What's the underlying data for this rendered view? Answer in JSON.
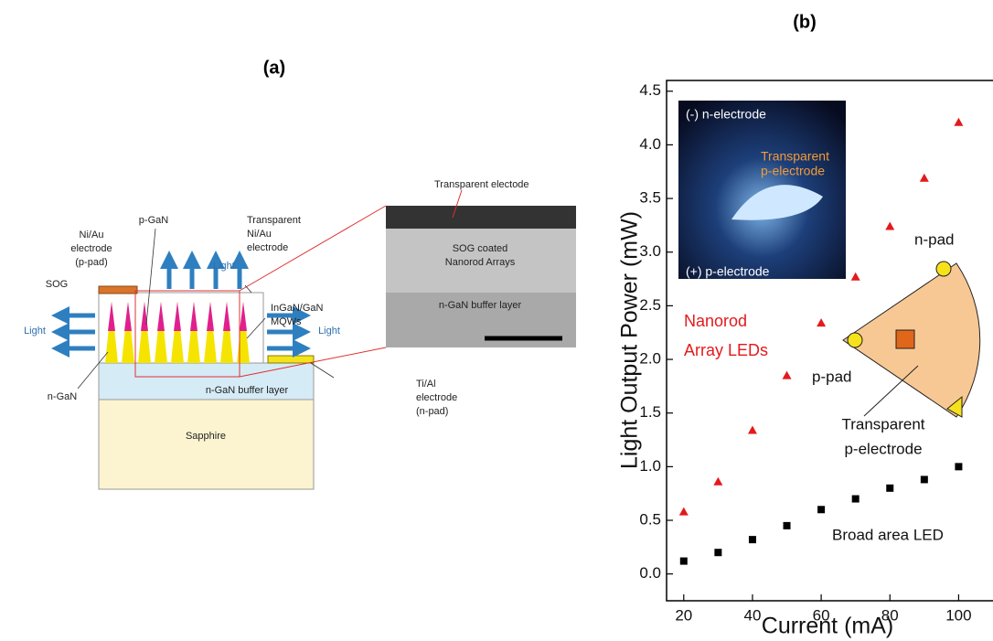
{
  "panel_a": {
    "label": "(a)",
    "ni_au": [
      "Ni/Au",
      "electrode",
      "(p-pad)"
    ],
    "p_gan": "p-GaN",
    "transparent": [
      "Transparent",
      "Ni/Au",
      "electrode"
    ],
    "sog": "SOG",
    "light": "Light",
    "mqw": [
      "InGaN/GaN",
      "MQWs"
    ],
    "n_gan": "n-GaN",
    "buffer": "n-GaN buffer layer",
    "ti_al": [
      "Ti/Al",
      "electrode",
      "(n-pad)"
    ],
    "sapphire": "Sapphire",
    "sem": {
      "top": "Transparent electode",
      "middle": [
        "SOG coated",
        "Nanorod Arrays"
      ],
      "bottom": "n-GaN buffer layer"
    }
  },
  "chart_data": {
    "type": "scatter",
    "panel_label": "(b)",
    "x_label": "Current (mA)",
    "y_label": "Light Output Power (mW)",
    "x": [
      20,
      30,
      40,
      50,
      60,
      70,
      80,
      90,
      100
    ],
    "series": [
      {
        "color": "#e31a1c",
        "marker": "triangle",
        "values": [
          0.58,
          0.86,
          1.34,
          1.85,
          2.34,
          2.77,
          3.24,
          3.69,
          4.21
        ]
      },
      {
        "color": "#000000",
        "marker": "square",
        "values": [
          0.12,
          0.2,
          0.32,
          0.45,
          0.6,
          0.7,
          0.8,
          0.88,
          1.0
        ]
      }
    ],
    "xlim": [
      15,
      110
    ],
    "ylim": [
      -0.25,
      4.6
    ],
    "xticks": [
      20,
      40,
      60,
      80,
      100
    ],
    "yticks": [
      {
        "value": 0,
        "label": "0.0"
      },
      {
        "value": 0.5,
        "label": "0.5"
      },
      {
        "value": 1,
        "label": "1.0"
      },
      {
        "value": 1.5,
        "label": "1.5"
      },
      {
        "value": 2,
        "label": "2.0"
      },
      {
        "value": 2.5,
        "label": "2.5"
      },
      {
        "value": 3,
        "label": "3.0"
      },
      {
        "value": 3.5,
        "label": "3.5"
      },
      {
        "value": 4,
        "label": "4.0"
      },
      {
        "value": 4.5,
        "label": "4.5"
      }
    ],
    "annotations": {
      "nanorod": [
        "Nanorod",
        "Array LEDs"
      ],
      "broad": "Broad area LED",
      "inset": {
        "n_pad": "n-pad",
        "p_pad": "p-pad",
        "transparent": [
          "Transparent",
          "p-electrode"
        ]
      },
      "photo": {
        "n_electrode": "(-) n-electrode",
        "transparent": [
          "Transparent",
          "p-electrode"
        ],
        "p_electrode": "(+) p-electrode"
      }
    }
  }
}
